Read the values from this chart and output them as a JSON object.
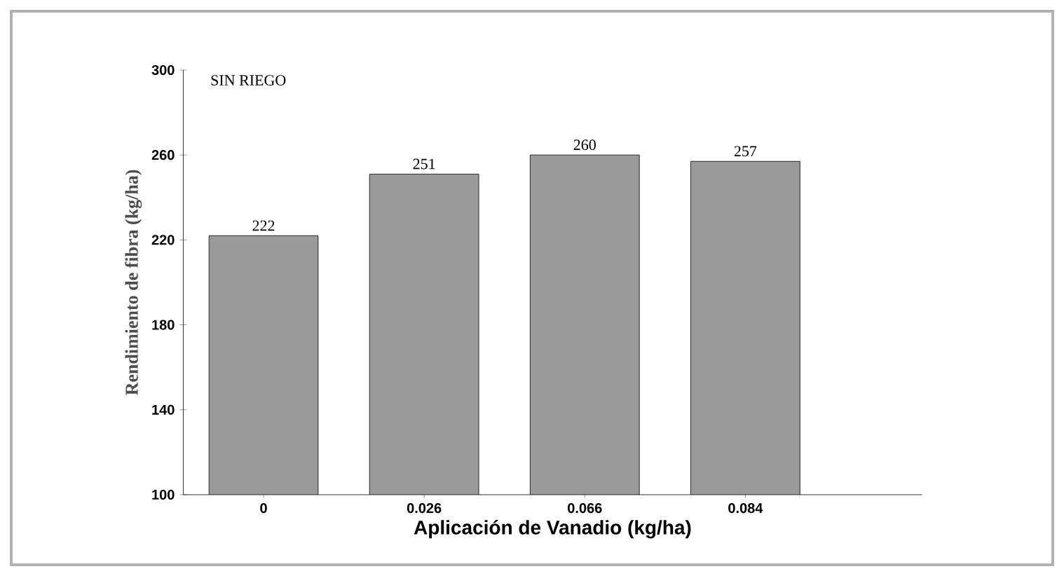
{
  "chart_data": {
    "type": "bar",
    "title": "SIN RIEGO",
    "categories": [
      "0",
      "0.026",
      "0.066",
      "0.084"
    ],
    "values": [
      222,
      251,
      260,
      257
    ],
    "value_labels": [
      "222",
      "251",
      "260",
      "257"
    ],
    "color": "#9a9a9a",
    "xlabel": "Aplicación de Vanadio (kg/ha)",
    "ylabel": "Rendimiento de fibra (kg/ha)",
    "ylim": [
      100,
      300
    ],
    "yticks": [
      100,
      140,
      180,
      220,
      260,
      300
    ],
    "grid": false
  }
}
